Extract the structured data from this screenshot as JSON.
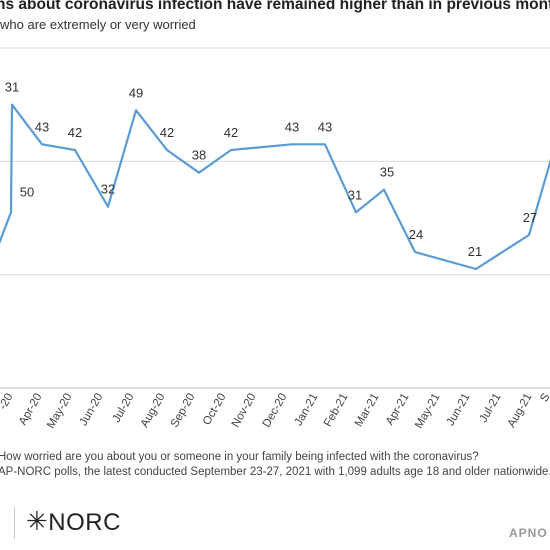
{
  "header": {
    "title": "ns about coronavirus infection have remained higher than in previous months",
    "subtitle": "who are extremely or very worried"
  },
  "chart_data": {
    "type": "line",
    "series": [
      {
        "color": "#5b9bd5",
        "points": [
          {
            "label": "Mar-20",
            "value": 25
          },
          {
            "label": "Mar-20",
            "value": 31
          },
          {
            "label": "Mar-20",
            "value": 50
          },
          {
            "label": "Apr-20",
            "value": 43
          },
          {
            "label": "May-20",
            "value": 42
          },
          {
            "label": "Jun-20",
            "value": 32
          },
          {
            "label": "Jul-20",
            "value": 49
          },
          {
            "label": "Aug-20",
            "value": 42
          },
          {
            "label": "Sep-20",
            "value": 38
          },
          {
            "label": "Oct-20",
            "value": 42
          },
          {
            "label": "Dec-20",
            "value": 43
          },
          {
            "label": "Jan-21",
            "value": 43
          },
          {
            "label": "Feb-21",
            "value": 31
          },
          {
            "label": "Mar-21",
            "value": 35
          },
          {
            "label": "Apr-21",
            "value": 24
          },
          {
            "label": "Jun-21",
            "value": 21
          },
          {
            "label": "Aug-21",
            "value": 27
          },
          {
            "label": "Sep-21",
            "value": 44
          }
        ]
      }
    ],
    "data_labels": [
      "50",
      "31",
      "43",
      "42",
      "32",
      "49",
      "42",
      "38",
      "42",
      "43",
      "43",
      "31",
      "35",
      "24",
      "21",
      "27"
    ],
    "x_tick_labels": [
      "-20",
      "Apr-20",
      "May-20",
      "Jun-20",
      "Jul-20",
      "Aug-20",
      "Sep-20",
      "Oct-20",
      "Nov-20",
      "Dec-20",
      "Jan-21",
      "Feb-21",
      "Mar-21",
      "Apr-21",
      "May-21",
      "Jun-21",
      "Jul-21",
      "Aug-21",
      "S"
    ],
    "ylim": [
      0,
      60
    ],
    "gridlines": [
      20,
      40,
      60
    ],
    "grid": true,
    "legend": "none"
  },
  "notes": {
    "question": "How worried are you about you or someone in your family being infected with the coronavirus?",
    "source": "AP-NORC polls, the latest conducted September 23-27, 2021 with 1,099 adults age 18 and older nationwide."
  },
  "branding": {
    "logo_mark": "✳",
    "logo_text": "NORC",
    "right_text": "APNO"
  }
}
